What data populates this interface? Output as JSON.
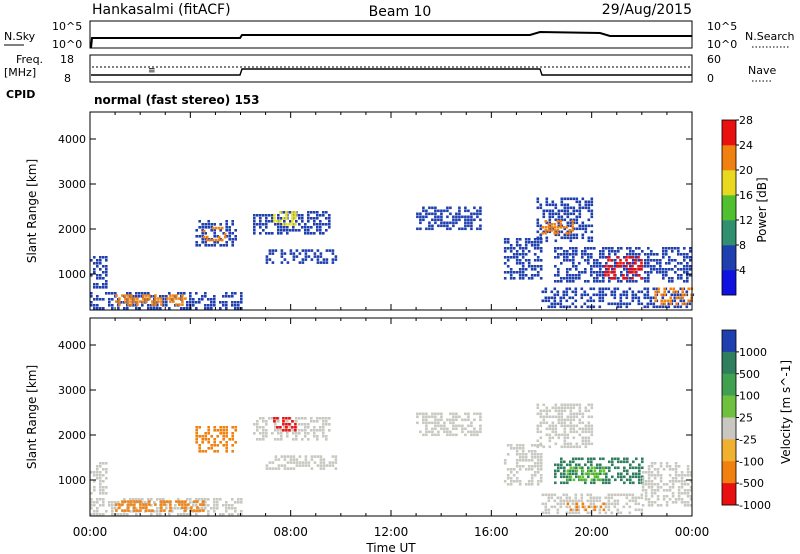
{
  "header": {
    "station": "Hankasalmi (fitACF)",
    "beam": "Beam 10",
    "date": "29/Aug/2015"
  },
  "noise_panel": {
    "left_label": "N.Sky",
    "left_ticks": [
      "10^5",
      "10^0"
    ],
    "right_ticks": [
      "10^5",
      "10^0"
    ],
    "right_label": "N.Search"
  },
  "freq_panel": {
    "label_top": "Freq.",
    "label_unit": "[MHz]",
    "left_ticks": [
      "18",
      "8"
    ],
    "right_ticks": [
      "60",
      "0"
    ],
    "right_label": "Nave"
  },
  "cpid": {
    "label": "CPID",
    "text": "normal (fast stereo) 153"
  },
  "colors": {
    "blue": "#1f3fae",
    "teal": "#2f7f5f",
    "green": "#5fc030",
    "yellow": "#e8e020",
    "orange": "#f08010",
    "red": "#e81010",
    "grey": "#c8c8c0"
  },
  "chart_data": [
    {
      "type": "heatmap",
      "name": "power",
      "ylabel": "Slant Range [km]",
      "yticks": [
        "1000",
        "2000",
        "3000",
        "4000"
      ],
      "ylim": [
        200,
        4600
      ],
      "xlim": [
        0,
        24
      ],
      "colorbar": {
        "label": "Power [dB]",
        "ticks": [
          "4",
          "8",
          "12",
          "16",
          "20",
          "24",
          "28"
        ],
        "colors": [
          "#1010e0",
          "#1f3fae",
          "#2f8f6f",
          "#50c030",
          "#e8d820",
          "#f08010",
          "#e81010"
        ]
      },
      "regions": [
        {
          "t0": 0.0,
          "t1": 0.6,
          "r0": 700,
          "r1": 1400,
          "level": "blue"
        },
        {
          "t0": 0.0,
          "t1": 6.0,
          "r0": 250,
          "r1": 600,
          "level": "blue"
        },
        {
          "t0": 1.0,
          "t1": 3.8,
          "r0": 300,
          "r1": 550,
          "level": "orange"
        },
        {
          "t0": 4.2,
          "t1": 5.8,
          "r0": 1650,
          "r1": 2200,
          "level": "blue"
        },
        {
          "t0": 4.5,
          "t1": 5.4,
          "r0": 1750,
          "r1": 2050,
          "level": "orange"
        },
        {
          "t0": 6.5,
          "t1": 9.5,
          "r0": 1900,
          "r1": 2400,
          "level": "blue"
        },
        {
          "t0": 7.3,
          "t1": 8.2,
          "r0": 2100,
          "r1": 2400,
          "level": "yellow"
        },
        {
          "t0": 7.0,
          "t1": 9.8,
          "r0": 1250,
          "r1": 1550,
          "level": "blue"
        },
        {
          "t0": 13.0,
          "t1": 15.6,
          "r0": 2000,
          "r1": 2500,
          "level": "blue"
        },
        {
          "t0": 16.5,
          "t1": 18.0,
          "r0": 900,
          "r1": 1800,
          "level": "blue"
        },
        {
          "t0": 17.8,
          "t1": 20.0,
          "r0": 1700,
          "r1": 2700,
          "level": "blue"
        },
        {
          "t0": 18.0,
          "t1": 19.2,
          "r0": 1900,
          "r1": 2200,
          "level": "orange"
        },
        {
          "t0": 18.5,
          "t1": 24.0,
          "r0": 800,
          "r1": 1600,
          "level": "blue"
        },
        {
          "t0": 20.5,
          "t1": 22.0,
          "r0": 900,
          "r1": 1400,
          "level": "red"
        },
        {
          "t0": 18.0,
          "t1": 24.0,
          "r0": 250,
          "r1": 700,
          "level": "blue"
        },
        {
          "t0": 22.5,
          "t1": 24.0,
          "r0": 300,
          "r1": 700,
          "level": "orange"
        }
      ]
    },
    {
      "type": "heatmap",
      "name": "velocity",
      "ylabel": "Slant Range [km]",
      "yticks": [
        "1000",
        "2000",
        "3000",
        "4000"
      ],
      "ylim": [
        200,
        4600
      ],
      "xlim": [
        0,
        24
      ],
      "colorbar": {
        "label": "Velocity [m s^-1]",
        "ticks": [
          "1000",
          "500",
          "100",
          "25",
          "-25",
          "-100",
          "-500",
          "-1000"
        ],
        "colors": [
          "#1f3fae",
          "#2f7f5f",
          "#3fa04f",
          "#70c040",
          "#c8c8c0",
          "#f0b030",
          "#f08010",
          "#e81010"
        ]
      },
      "regions": [
        {
          "t0": 0.0,
          "t1": 0.6,
          "r0": 700,
          "r1": 1400,
          "level": "grey"
        },
        {
          "t0": 0.0,
          "t1": 6.0,
          "r0": 250,
          "r1": 600,
          "level": "grey"
        },
        {
          "t0": 1.0,
          "t1": 4.5,
          "r0": 300,
          "r1": 550,
          "level": "orange"
        },
        {
          "t0": 4.2,
          "t1": 5.8,
          "r0": 1650,
          "r1": 2200,
          "level": "orange"
        },
        {
          "t0": 6.5,
          "t1": 9.5,
          "r0": 1900,
          "r1": 2400,
          "level": "grey"
        },
        {
          "t0": 7.3,
          "t1": 8.2,
          "r0": 2100,
          "r1": 2400,
          "level": "red"
        },
        {
          "t0": 7.0,
          "t1": 9.8,
          "r0": 1250,
          "r1": 1550,
          "level": "grey"
        },
        {
          "t0": 13.0,
          "t1": 15.6,
          "r0": 2000,
          "r1": 2500,
          "level": "grey"
        },
        {
          "t0": 16.5,
          "t1": 18.0,
          "r0": 900,
          "r1": 1800,
          "level": "grey"
        },
        {
          "t0": 17.8,
          "t1": 20.0,
          "r0": 1700,
          "r1": 2700,
          "level": "grey"
        },
        {
          "t0": 18.5,
          "t1": 22.0,
          "r0": 900,
          "r1": 1500,
          "level": "teal"
        },
        {
          "t0": 19.0,
          "t1": 20.5,
          "r0": 1000,
          "r1": 1300,
          "level": "green"
        },
        {
          "t0": 22.0,
          "t1": 24.0,
          "r0": 400,
          "r1": 1400,
          "level": "grey"
        },
        {
          "t0": 18.0,
          "t1": 22.0,
          "r0": 250,
          "r1": 700,
          "level": "grey"
        },
        {
          "t0": 19.0,
          "t1": 20.5,
          "r0": 300,
          "r1": 500,
          "level": "orange"
        }
      ]
    }
  ],
  "time_axis": {
    "ticks": [
      "00:00",
      "04:00",
      "08:00",
      "12:00",
      "16:00",
      "20:00",
      "00:00"
    ],
    "label": "Time UT"
  }
}
